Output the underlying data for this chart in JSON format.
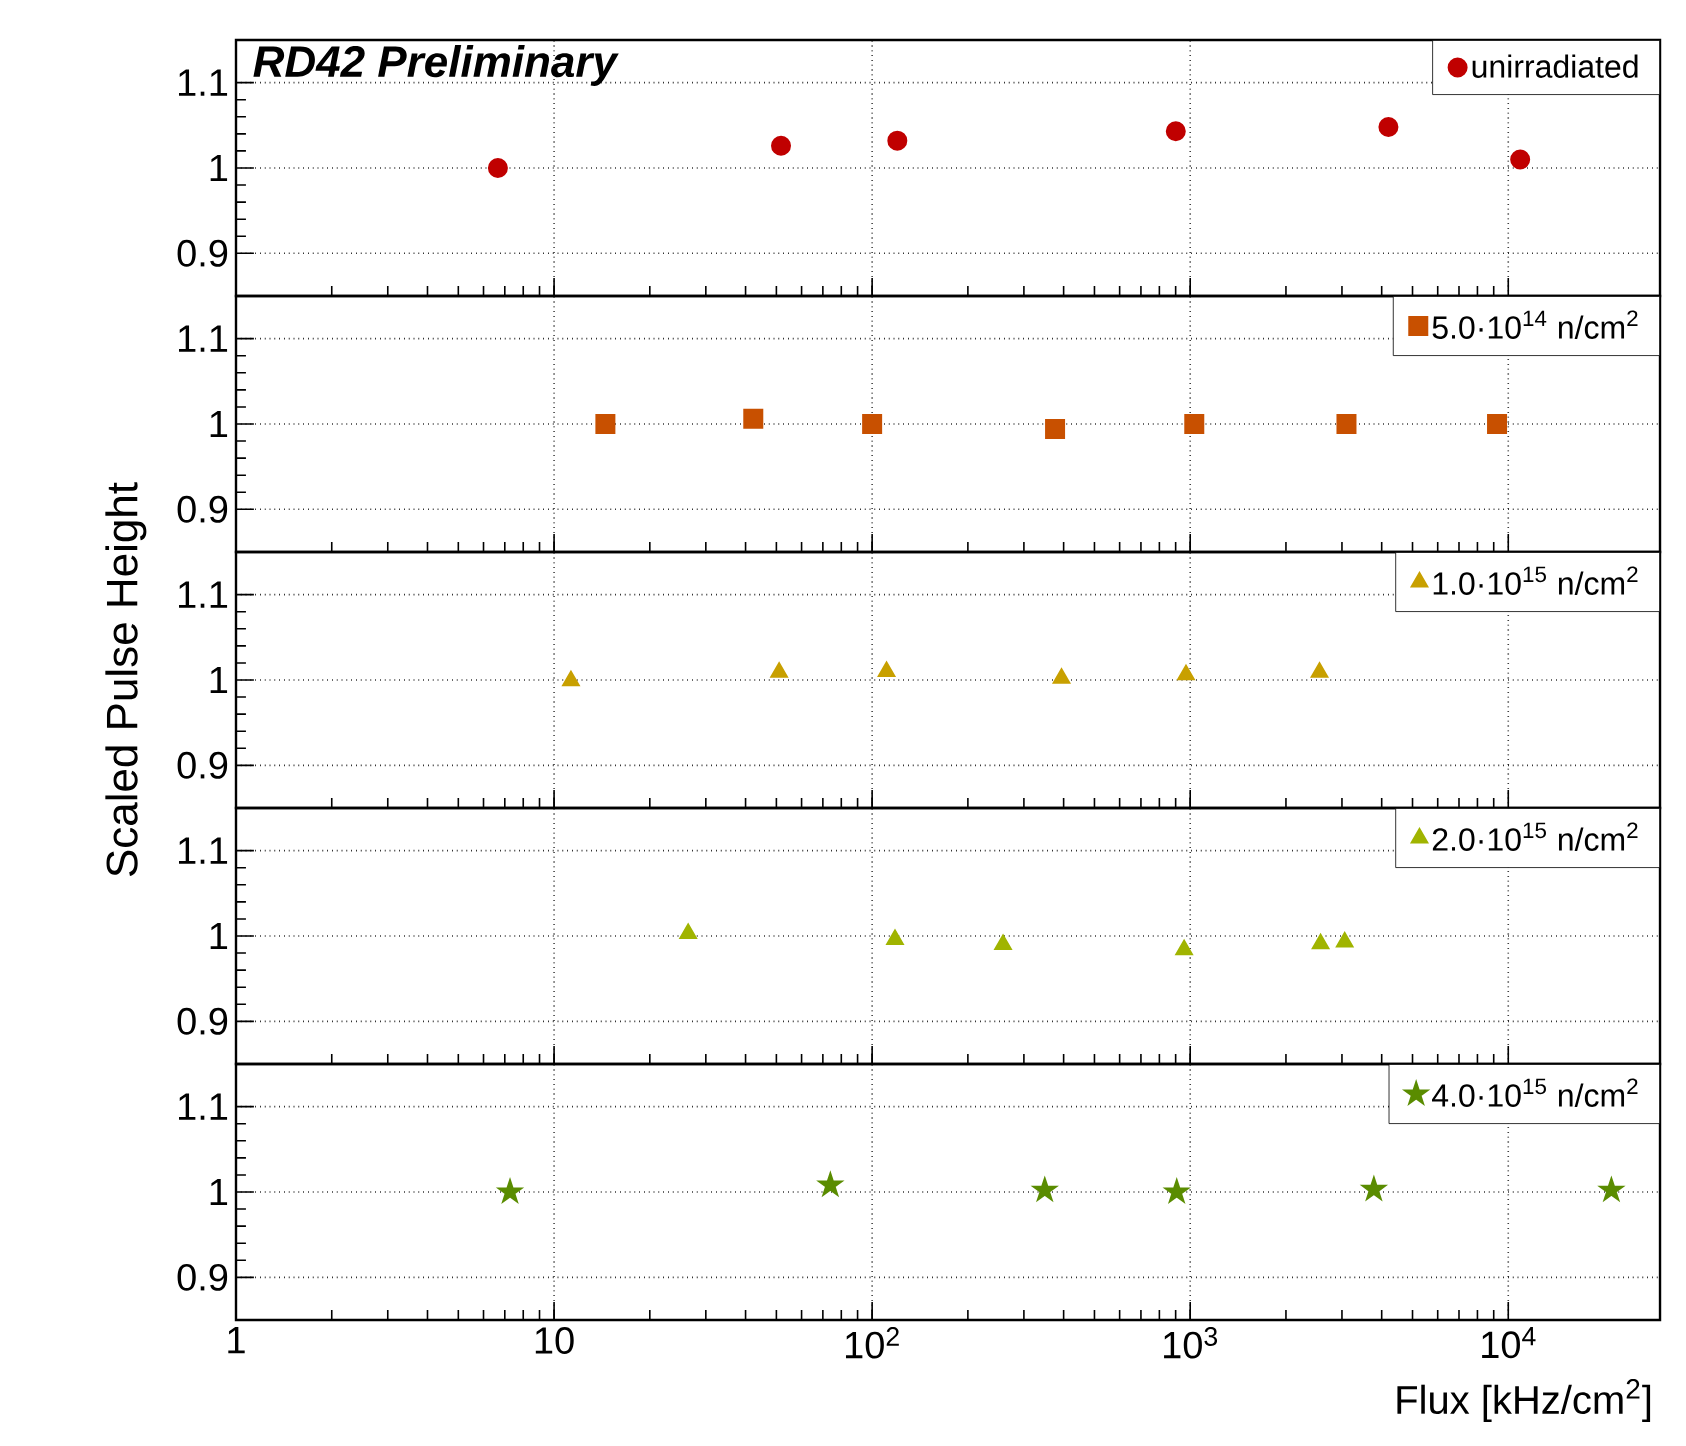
{
  "chart_data": [
    {
      "type": "scatter",
      "marker": "circle",
      "log": "x",
      "grid": true,
      "legend": "top right",
      "tick_labels": "y",
      "xlim": [
        1,
        30000
      ],
      "ylim": [
        0.85,
        1.15
      ],
      "yticks": [
        0.9,
        1,
        1.1
      ],
      "xticks": [
        {
          "value": 1,
          "label": null
        },
        {
          "value": 10,
          "label": null
        },
        {
          "value": 100,
          "label": null
        },
        {
          "value": 1000,
          "label": null
        },
        {
          "value": 10000,
          "label": null
        }
      ],
      "annotations": [
        "RD42 Preliminary"
      ],
      "series": [
        {
          "name": "unirradiated",
          "color": "#c00000",
          "x": [
            6.66,
            51.7,
            120,
            901,
            4200,
            10900
          ],
          "values": [
            1.0,
            1.026,
            1.032,
            1.043,
            1.048,
            1.01
          ]
        }
      ]
    },
    {
      "type": "scatter",
      "marker": "square",
      "log": "x",
      "grid": true,
      "legend": "top right",
      "tick_labels": "y",
      "xlim": [
        1,
        30000
      ],
      "ylim": [
        0.85,
        1.15
      ],
      "yticks": [
        0.9,
        1,
        1.1
      ],
      "xticks": [
        {
          "value": 1,
          "label": null
        },
        {
          "value": 10,
          "label": null
        },
        {
          "value": 100,
          "label": null
        },
        {
          "value": 1000,
          "label": null
        },
        {
          "value": 10000,
          "label": null
        }
      ],
      "series": [
        {
          "name": "5.0·10$^{14}$ n/cm$^{2}$",
          "color": "#c85000",
          "x": [
            14.5,
            42.3,
            100,
            376,
            1030,
            3100,
            9220
          ],
          "values": [
            1.0,
            1.006,
            1.0,
            0.994,
            1.0,
            1.0,
            1.0
          ]
        }
      ]
    },
    {
      "type": "scatter",
      "marker": "triangle",
      "log": "x",
      "grid": true,
      "legend": "top right",
      "tick_labels": "y",
      "xlim": [
        1,
        30000
      ],
      "ylim": [
        0.85,
        1.15
      ],
      "yticks": [
        0.9,
        1,
        1.1
      ],
      "xticks": [
        {
          "value": 1,
          "label": null
        },
        {
          "value": 10,
          "label": null
        },
        {
          "value": 100,
          "label": null
        },
        {
          "value": 1000,
          "label": null
        },
        {
          "value": 10000,
          "label": null
        }
      ],
      "ylabel": "Scaled Pulse Height",
      "series": [
        {
          "name": "1.0·10$^{15}$ n/cm$^{2}$",
          "color": "#c8a000",
          "x": [
            11.3,
            51,
            111,
            394,
            970,
            2550
          ],
          "values": [
            0.999,
            1.009,
            1.01,
            1.002,
            1.006,
            1.009
          ]
        }
      ]
    },
    {
      "type": "scatter",
      "marker": "triangle",
      "log": "x",
      "grid": true,
      "legend": "top right",
      "tick_labels": "y",
      "xlim": [
        1,
        30000
      ],
      "ylim": [
        0.85,
        1.15
      ],
      "yticks": [
        0.9,
        1,
        1.1
      ],
      "xticks": [
        {
          "value": 1,
          "label": null
        },
        {
          "value": 10,
          "label": null
        },
        {
          "value": 100,
          "label": null
        },
        {
          "value": 1000,
          "label": null
        },
        {
          "value": 10000,
          "label": null
        }
      ],
      "series": [
        {
          "name": "2.0·10$^{15}$ n/cm$^{2}$",
          "color": "#a0b400",
          "x": [
            26.4,
            118,
            258,
            957,
            2570,
            3060
          ],
          "values": [
            1.003,
            0.996,
            0.99,
            0.984,
            0.991,
            0.993
          ]
        }
      ]
    },
    {
      "type": "scatter",
      "marker": "star",
      "log": "x",
      "grid": true,
      "legend": "top right",
      "xlim": [
        1,
        30000
      ],
      "ylim": [
        0.85,
        1.15
      ],
      "yticks": [
        0.9,
        1,
        1.1
      ],
      "xticks": [
        1,
        10,
        {
          "value": 100,
          "label": "10$^{2}$"
        },
        {
          "value": 1000,
          "label": "10$^{3}$"
        },
        {
          "value": 10000,
          "label": "10$^{4}$"
        }
      ],
      "xlabel": "Flux [kHz/cm$^{2}$]",
      "series": [
        {
          "name": "4.0·10$^{15}$ n/cm$^{2}$",
          "color": "#5a8c00",
          "x": [
            7.27,
            73.9,
            349,
            907,
            3780,
            21100
          ],
          "values": [
            1.0,
            1.008,
            1.002,
            1.0,
            1.003,
            1.002
          ]
        }
      ]
    }
  ]
}
